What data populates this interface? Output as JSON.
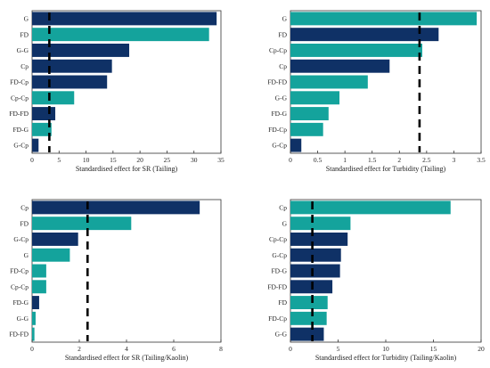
{
  "colors": {
    "navy": "#0f3166",
    "teal": "#14a39c",
    "threshold": "#000000"
  },
  "chart_data": [
    {
      "type": "bar",
      "orientation": "horizontal",
      "xlabel": "Standardised effect for SR (Tailing)",
      "xlim": [
        0,
        35
      ],
      "xticks": [
        0,
        5,
        10,
        15,
        20,
        25,
        30,
        35
      ],
      "threshold": 3.2,
      "categories": [
        "G",
        "FD",
        "G-G",
        "Cp",
        "FD-Cp",
        "Cp-Cp",
        "FD-FD",
        "FD-G",
        "G-Cp"
      ],
      "values": [
        34.2,
        32.8,
        18.0,
        14.8,
        13.9,
        7.8,
        4.3,
        3.6,
        1.2
      ],
      "bar_colors": [
        "navy",
        "teal",
        "navy",
        "navy",
        "navy",
        "teal",
        "navy",
        "teal",
        "navy"
      ]
    },
    {
      "type": "bar",
      "orientation": "horizontal",
      "xlabel": "Standardised effect for Turbidity (Tailing)",
      "xlim": [
        0,
        3.5
      ],
      "xticks": [
        0,
        0.5,
        1,
        1.5,
        2,
        2.5,
        3,
        3.5
      ],
      "threshold": 2.37,
      "categories": [
        "G",
        "FD",
        "Cp-Cp",
        "Cp",
        "FD-FD",
        "G-G",
        "FD-G",
        "FD-Cp",
        "G-Cp"
      ],
      "values": [
        3.42,
        2.72,
        2.42,
        1.82,
        1.42,
        0.9,
        0.7,
        0.6,
        0.2
      ],
      "bar_colors": [
        "teal",
        "navy",
        "teal",
        "navy",
        "teal",
        "teal",
        "teal",
        "teal",
        "navy"
      ]
    },
    {
      "type": "bar",
      "orientation": "horizontal",
      "xlabel": "Standardised effect for SR (Tailing/Kaolin)",
      "xlim": [
        0,
        8
      ],
      "xticks": [
        0,
        2,
        4,
        6,
        8
      ],
      "threshold": 2.35,
      "categories": [
        "Cp",
        "FD",
        "G-Cp",
        "G",
        "FD-Cp",
        "Cp-Cp",
        "FD-G",
        "G-G",
        "FD-FD"
      ],
      "values": [
        7.1,
        4.2,
        1.95,
        1.6,
        0.6,
        0.6,
        0.3,
        0.15,
        0.1
      ],
      "bar_colors": [
        "navy",
        "teal",
        "navy",
        "teal",
        "teal",
        "teal",
        "navy",
        "teal",
        "teal"
      ]
    },
    {
      "type": "bar",
      "orientation": "horizontal",
      "xlabel": "Standardised effect for Turbidity (Tailing/Kaolin)",
      "xlim": [
        0,
        20
      ],
      "xticks": [
        0,
        5,
        10,
        15,
        20
      ],
      "threshold": 2.3,
      "categories": [
        "Cp",
        "G",
        "Cp-Cp",
        "G-Cp",
        "FD-G",
        "FD-FD",
        "FD",
        "FD-Cp",
        "G-G"
      ],
      "values": [
        16.8,
        6.3,
        6.0,
        5.3,
        5.2,
        4.4,
        3.9,
        3.8,
        3.5
      ],
      "bar_colors": [
        "teal",
        "teal",
        "navy",
        "navy",
        "navy",
        "navy",
        "teal",
        "teal",
        "navy"
      ]
    }
  ]
}
